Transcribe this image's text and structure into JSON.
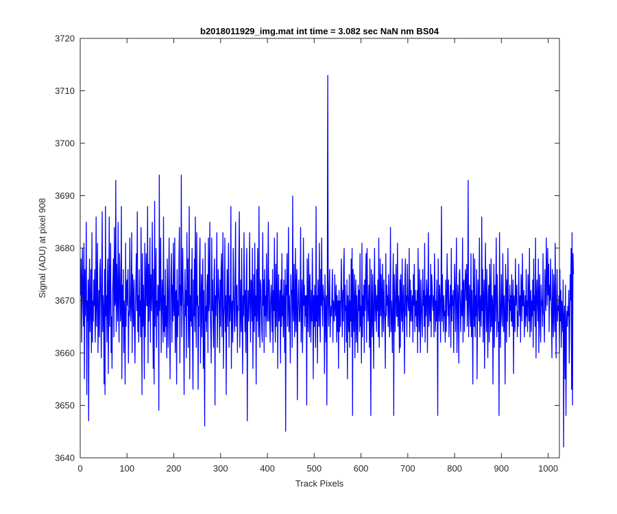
{
  "chart_data": {
    "type": "line",
    "title": "b2018011929_img.mat int time = 3.082 sec  NaN nm BS04",
    "xlabel": "Track Pixels",
    "ylabel": "Signal (ADU) at pixel 908",
    "xlim": [
      0,
      1024
    ],
    "ylim": [
      3640,
      3720
    ],
    "xticks": [
      0,
      100,
      200,
      300,
      400,
      500,
      600,
      700,
      800,
      900,
      1000
    ],
    "yticks": [
      3640,
      3650,
      3660,
      3670,
      3680,
      3690,
      3700,
      3710,
      3720
    ],
    "grid": false,
    "legend": "none",
    "series": [
      {
        "color": "#0000ff",
        "x_start": 1,
        "x_step": 1,
        "y": [
          3671,
          3678,
          3662,
          3673,
          3680,
          3669,
          3665,
          3681,
          3655,
          3676,
          3667,
          3671,
          3685,
          3652,
          3670,
          3666,
          3674,
          3647,
          3672,
          3678,
          3664,
          3669,
          3676,
          3660,
          3683,
          3662,
          3670,
          3666,
          3674,
          3669,
          3676,
          3662,
          3669,
          3686,
          3665,
          3671,
          3681,
          3660,
          3667,
          3672,
          3663,
          3676,
          3678,
          3669,
          3659,
          3674,
          3687,
          3664,
          3671,
          3668,
          3654,
          3676,
          3652,
          3688,
          3667,
          3671,
          3662,
          3673,
          3678,
          3656,
          3669,
          3686,
          3665,
          3672,
          3681,
          3660,
          3667,
          3657,
          3671,
          3674,
          3678,
          3663,
          3684,
          3669,
          3670,
          3693,
          3664,
          3677,
          3671,
          3666,
          3685,
          3670,
          3662,
          3679,
          3675,
          3666,
          3668,
          3688,
          3655,
          3673,
          3665,
          3676,
          3660,
          3670,
          3667,
          3654,
          3681,
          3665,
          3673,
          3674,
          3669,
          3676,
          3658,
          3668,
          3667,
          3682,
          3669,
          3666,
          3671,
          3683,
          3660,
          3675,
          3671,
          3665,
          3674,
          3665,
          3658,
          3669,
          3674,
          3679,
          3668,
          3687,
          3664,
          3671,
          3662,
          3676,
          3667,
          3670,
          3663,
          3684,
          3671,
          3652,
          3679,
          3665,
          3673,
          3667,
          3655,
          3681,
          3663,
          3673,
          3679,
          3669,
          3669,
          3688,
          3658,
          3677,
          3666,
          3672,
          3682,
          3662,
          3675,
          3668,
          3671,
          3685,
          3669,
          3657,
          3676,
          3654,
          3689,
          3665,
          3672,
          3680,
          3661,
          3670,
          3667,
          3673,
          3672,
          3649,
          3694,
          3668,
          3671,
          3682,
          3660,
          3667,
          3674,
          3670,
          3662,
          3686,
          3664,
          3671,
          3663,
          3676,
          3665,
          3669,
          3659,
          3678,
          3670,
          3661,
          3673,
          3682,
          3667,
          3655,
          3669,
          3675,
          3679,
          3662,
          3673,
          3666,
          3681,
          3669,
          3667,
          3682,
          3660,
          3671,
          3672,
          3654,
          3676,
          3663,
          3670,
          3667,
          3678,
          3684,
          3658,
          3673,
          3669,
          3694,
          3663,
          3670,
          3680,
          3672,
          3666,
          3652,
          3669,
          3676,
          3667,
          3672,
          3659,
          3683,
          3669,
          3678,
          3661,
          3668,
          3688,
          3655,
          3671,
          3666,
          3676,
          3665,
          3680,
          3662,
          3653,
          3674,
          3667,
          3678,
          3664,
          3686,
          3670,
          3661,
          3683,
          3669,
          3671,
          3653,
          3669,
          3665,
          3677,
          3682,
          3658,
          3669,
          3675,
          3663,
          3672,
          3678,
          3657,
          3672,
          3661,
          3646,
          3681,
          3666,
          3669,
          3664,
          3673,
          3675,
          3660,
          3682,
          3668,
          3670,
          3685,
          3667,
          3664,
          3658,
          3682,
          3668,
          3674,
          3665,
          3661,
          3675,
          3678,
          3650,
          3671,
          3667,
          3673,
          3683,
          3661,
          3668,
          3676,
          3672,
          3669,
          3660,
          3674,
          3665,
          3676,
          3679,
          3663,
          3672,
          3683,
          3657,
          3667,
          3669,
          3682,
          3664,
          3671,
          3652,
          3669,
          3676,
          3665,
          3673,
          3681,
          3661,
          3671,
          3666,
          3670,
          3688,
          3657,
          3669,
          3670,
          3662,
          3680,
          3672,
          3667,
          3664,
          3675,
          3685,
          3665,
          3672,
          3673,
          3660,
          3669,
          3668,
          3678,
          3687,
          3661,
          3668,
          3674,
          3664,
          3680,
          3668,
          3656,
          3671,
          3667,
          3683,
          3671,
          3664,
          3672,
          3660,
          3675,
          3680,
          3647,
          3667,
          3672,
          3666,
          3670,
          3683,
          3669,
          3662,
          3674,
          3673,
          3666,
          3680,
          3657,
          3669,
          3675,
          3664,
          3681,
          3667,
          3671,
          3654,
          3676,
          3666,
          3680,
          3669,
          3663,
          3688,
          3668,
          3661,
          3674,
          3673,
          3669,
          3664,
          3662,
          3683,
          3669,
          3674,
          3660,
          3676,
          3667,
          3671,
          3663,
          3679,
          3668,
          3666,
          3675,
          3685,
          3666,
          3674,
          3667,
          3662,
          3670,
          3673,
          3669,
          3664,
          3676,
          3660,
          3672,
          3668,
          3682,
          3667,
          3662,
          3677,
          3665,
          3671,
          3683,
          3657,
          3669,
          3675,
          3666,
          3668,
          3672,
          3658,
          3674,
          3665,
          3679,
          3667,
          3671,
          3663,
          3674,
          3669,
          3660,
          3676,
          3645,
          3673,
          3671,
          3679,
          3665,
          3669,
          3684,
          3664,
          3671,
          3667,
          3658,
          3675,
          3671,
          3672,
          3661,
          3690,
          3669,
          3666,
          3677,
          3663,
          3668,
          3680,
          3664,
          3673,
          3676,
          3651,
          3668,
          3671,
          3674,
          3666,
          3666,
          3670,
          3684,
          3662,
          3669,
          3674,
          3660,
          3667,
          3682,
          3669,
          3673,
          3665,
          3671,
          3667,
          3671,
          3650,
          3678,
          3669,
          3664,
          3679,
          3673,
          3663,
          3675,
          3668,
          3662,
          3672,
          3666,
          3680,
          3670,
          3655,
          3671,
          3665,
          3673,
          3667,
          3661,
          3688,
          3666,
          3671,
          3658,
          3674,
          3670,
          3665,
          3681,
          3667,
          3662,
          3676,
          3669,
          3682,
          3669,
          3665,
          3673,
          3671,
          3670,
          3656,
          3675,
          3667,
          3662,
          3671,
          3650,
          3673,
          3713,
          3669,
          3665,
          3672,
          3676,
          3663,
          3667,
          3669,
          3667,
          3672,
          3676,
          3662,
          3670,
          3668,
          3666,
          3675,
          3669,
          3667,
          3673,
          3662,
          3671,
          3664,
          3670,
          3657,
          3672,
          3664,
          3670,
          3665,
          3671,
          3678,
          3669,
          3663,
          3672,
          3666,
          3676,
          3680,
          3660,
          3673,
          3668,
          3669,
          3662,
          3674,
          3655,
          3671,
          3668,
          3664,
          3675,
          3661,
          3670,
          3666,
          3678,
          3663,
          3680,
          3648,
          3676,
          3669,
          3664,
          3675,
          3659,
          3670,
          3674,
          3662,
          3671,
          3666,
          3660,
          3673,
          3668,
          3672,
          3664,
          3679,
          3665,
          3669,
          3658,
          3681,
          3663,
          3671,
          3667,
          3673,
          3660,
          3674,
          3668,
          3675,
          3679,
          3662,
          3680,
          3671,
          3666,
          3669,
          3673,
          3661,
          3678,
          3664,
          3648,
          3676,
          3669,
          3663,
          3675,
          3668,
          3657,
          3672,
          3680,
          3666,
          3673,
          3670,
          3664,
          3671,
          3668,
          3674,
          3663,
          3682,
          3661,
          3669,
          3678,
          3667,
          3675,
          3670,
          3663,
          3677,
          3670,
          3664,
          3674,
          3668,
          3666,
          3657,
          3679,
          3667,
          3673,
          3669,
          3671,
          3665,
          3675,
          3669,
          3663,
          3671,
          3684,
          3664,
          3670,
          3667,
          3660,
          3673,
          3679,
          3648,
          3675,
          3669,
          3664,
          3672,
          3677,
          3667,
          3667,
          3681,
          3665,
          3671,
          3669,
          3660,
          3674,
          3661,
          3675,
          3670,
          3666,
          3678,
          3664,
          3669,
          3673,
          3667,
          3656,
          3675,
          3678,
          3667,
          3671,
          3663,
          3677,
          3671,
          3669,
          3668,
          3680,
          3663,
          3674,
          3666,
          3672,
          3669,
          3666,
          3671,
          3662,
          3675,
          3669,
          3677,
          3664,
          3672,
          3667,
          3670,
          3665,
          3672,
          3660,
          3680,
          3669,
          3664,
          3676,
          3667,
          3660,
          3674,
          3670,
          3666,
          3663,
          3676,
          3669,
          3672,
          3665,
          3681,
          3662,
          3671,
          3667,
          3674,
          3672,
          3660,
          3671,
          3683,
          3665,
          3669,
          3671,
          3666,
          3677,
          3663,
          3675,
          3673,
          3669,
          3668,
          3671,
          3663,
          3679,
          3672,
          3664,
          3670,
          3666,
          3674,
          3667,
          3648,
          3678,
          3670,
          3666,
          3673,
          3670,
          3662,
          3672,
          3688,
          3666,
          3675,
          3669,
          3664,
          3671,
          3667,
          3668,
          3662,
          3674,
          3664,
          3669,
          3679,
          3672,
          3667,
          3674,
          3663,
          3668,
          3670,
          3673,
          3661,
          3680,
          3666,
          3671,
          3669,
          3672,
          3660,
          3668,
          3677,
          3673,
          3664,
          3671,
          3682,
          3660,
          3666,
          3673,
          3670,
          3658,
          3675,
          3676,
          3670,
          3664,
          3669,
          3672,
          3667,
          3682,
          3662,
          3673,
          3674,
          3664,
          3669,
          3676,
          3674,
          3670,
          3677,
          3665,
          3669,
          3693,
          3663,
          3671,
          3673,
          3668,
          3665,
          3679,
          3663,
          3672,
          3666,
          3654,
          3679,
          3669,
          3665,
          3678,
          3663,
          3671,
          3667,
          3676,
          3655,
          3667,
          3674,
          3670,
          3666,
          3682,
          3663,
          3669,
          3671,
          3665,
          3686,
          3668,
          3676,
          3662,
          3670,
          3674,
          3657,
          3669,
          3681,
          3669,
          3664,
          3676,
          3667,
          3659,
          3671,
          3673,
          3662,
          3677,
          3670,
          3664,
          3678,
          3665,
          3671,
          3670,
          3654,
          3669,
          3677,
          3661,
          3673,
          3666,
          3672,
          3682,
          3663,
          3675,
          3670,
          3664,
          3666,
          3648,
          3683,
          3670,
          3661,
          3669,
          3675,
          3667,
          3665,
          3679,
          3670,
          3664,
          3671,
          3667,
          3654,
          3677,
          3672,
          3662,
          3674,
          3666,
          3680,
          3670,
          3670,
          3663,
          3673,
          3668,
          3671,
          3666,
          3675,
          3665,
          3668,
          3674,
          3656,
          3671,
          3667,
          3664,
          3678,
          3669,
          3671,
          3673,
          3663,
          3668,
          3665,
          3677,
          3670,
          3667,
          3671,
          3662,
          3675,
          3672,
          3666,
          3679,
          3669,
          3669,
          3672,
          3663,
          3668,
          3671,
          3665,
          3676,
          3667,
          3670,
          3664,
          3675,
          3671,
          3666,
          3680,
          3663,
          3669,
          3672,
          3664,
          3670,
          3667,
          3674,
          3661,
          3678,
          3668,
          3671,
          3665,
          3682,
          3659,
          3670,
          3674,
          3669,
          3666,
          3678,
          3660,
          3671,
          3675,
          3665,
          3662,
          3673,
          3669,
          3670,
          3665,
          3679,
          3668,
          3667,
          3662,
          3676,
          3671,
          3668,
          3682,
          3674,
          3669,
          3680,
          3671,
          3677,
          3664,
          3673,
          3670,
          3678,
          3671,
          3667,
          3659,
          3676,
          3668,
          3663,
          3675,
          3670,
          3664,
          3681,
          3667,
          3659,
          3671,
          3676,
          3666,
          3669,
          3668,
          3671,
          3660,
          3676,
          3666,
          3672,
          3661,
          3670,
          3668,
          3664,
          3674,
          3642,
          3667,
          3669,
          3655,
          3673,
          3648,
          3665,
          3668,
          3665,
          3669,
          3667,
          3672,
          3658,
          3666,
          3675,
          3670,
          3680,
          3653,
          3683,
          3650,
          3679,
          3675
        ]
      }
    ]
  }
}
